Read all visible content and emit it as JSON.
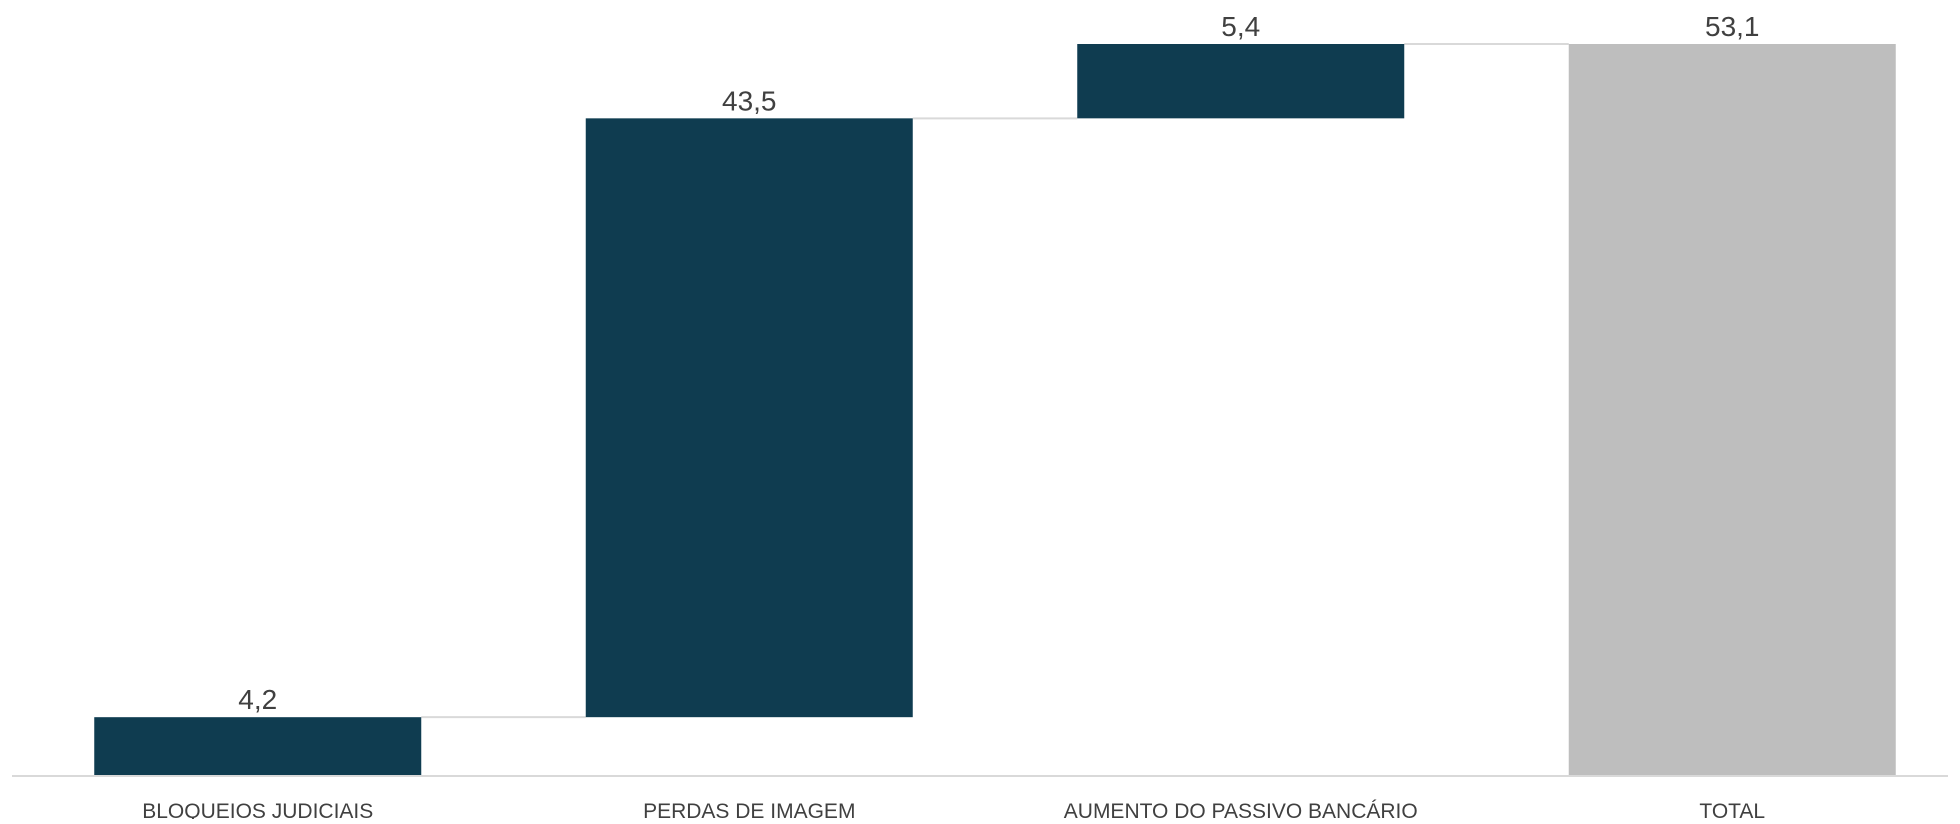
{
  "chart_data": {
    "type": "bar",
    "subtype": "waterfall",
    "categories": [
      "BLOQUEIOS JUDICIAIS",
      "PERDAS DE IMAGEM",
      "AUMENTO DO PASSIVO BANCÁRIO",
      "TOTAL"
    ],
    "values": [
      4.2,
      43.5,
      5.4,
      53.1
    ],
    "data_labels": [
      "4,2",
      "43,5",
      "5,4",
      "53,1"
    ],
    "is_total": [
      false,
      false,
      false,
      true
    ],
    "title": "",
    "xlabel": "",
    "ylabel": "",
    "ylim": [
      0,
      53.1
    ],
    "grid": false,
    "legend": "none",
    "colors": {
      "increment": "#0f3c50",
      "total": "#bebebe",
      "connector": "#d9d9d9",
      "axis": "#d9d9d9",
      "label": "#404040"
    }
  }
}
